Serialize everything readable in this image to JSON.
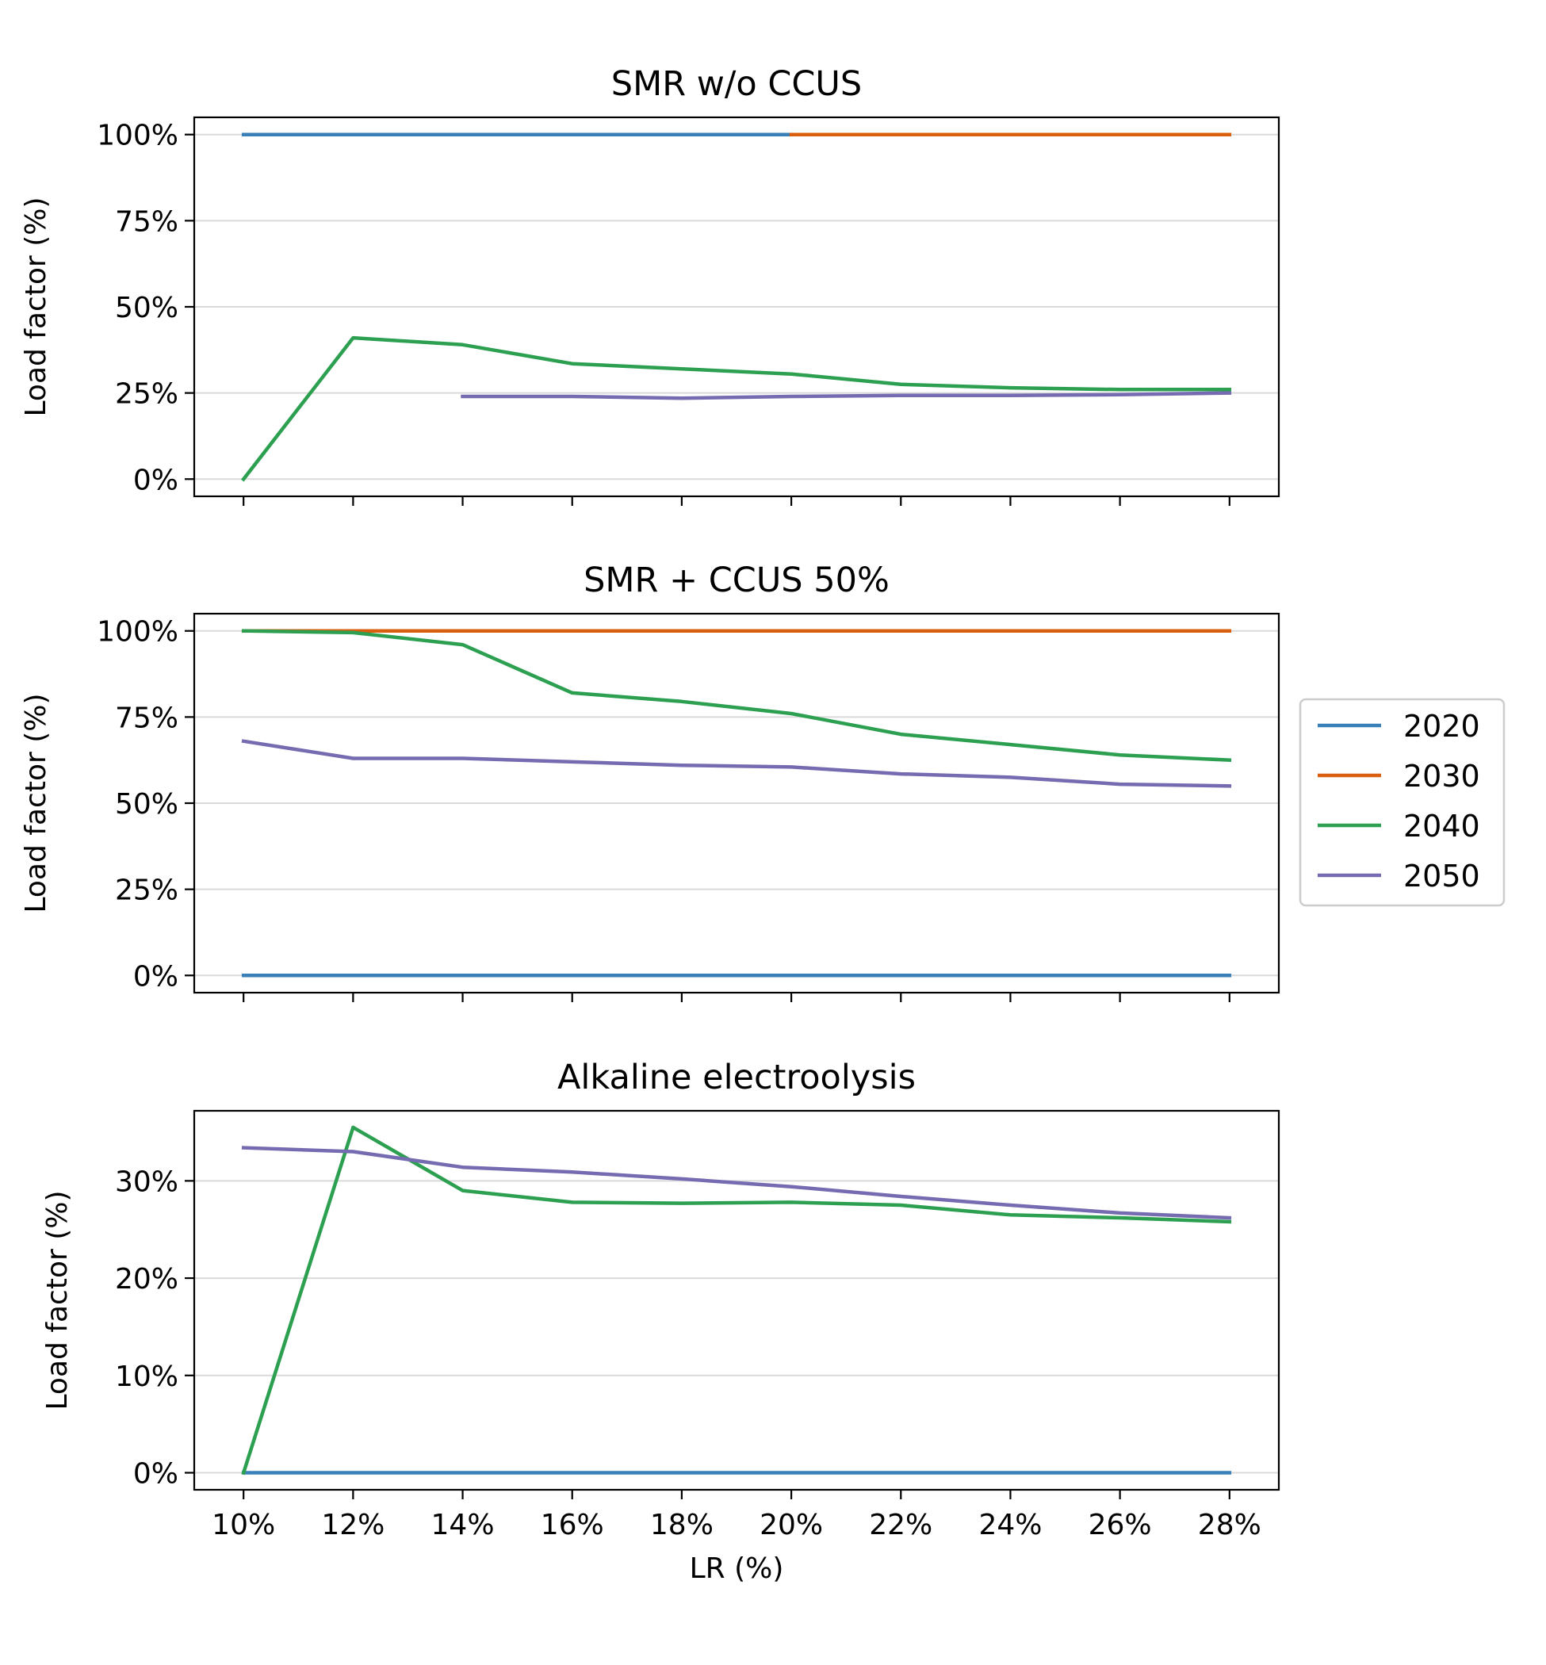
{
  "chart_data": [
    {
      "type": "line",
      "title": "SMR w/o CCUS",
      "xlabel": "",
      "ylabel": "Load factor (%)",
      "x": [
        10,
        12,
        14,
        16,
        18,
        20,
        22,
        24,
        26,
        28
      ],
      "xlim": [
        9.1,
        28.9
      ],
      "ylim": [
        -5,
        105
      ],
      "yticks": [
        0,
        25,
        50,
        75,
        100
      ],
      "ytick_labels": [
        "0%",
        "25%",
        "50%",
        "75%",
        "100%"
      ],
      "xtick_labels_visible": false,
      "grid": "horizontal",
      "series": [
        {
          "name": "2020",
          "color": "#3a80b8",
          "values": [
            100,
            100,
            100,
            100,
            100,
            100,
            null,
            null,
            null,
            null
          ]
        },
        {
          "name": "2030",
          "color": "#d95f0e",
          "values": [
            null,
            null,
            null,
            null,
            null,
            100,
            100,
            100,
            100,
            100
          ]
        },
        {
          "name": "2040",
          "color": "#2ca050",
          "values": [
            0,
            41,
            39,
            33.5,
            32,
            30.5,
            27.5,
            26.5,
            26,
            26
          ]
        },
        {
          "name": "2050",
          "color": "#756bb1",
          "values": [
            null,
            null,
            24,
            24,
            23.5,
            24,
            24.3,
            24.3,
            24.5,
            25
          ]
        }
      ]
    },
    {
      "type": "line",
      "title": "SMR + CCUS 50%",
      "xlabel": "",
      "ylabel": "Load factor (%)",
      "x": [
        10,
        12,
        14,
        16,
        18,
        20,
        22,
        24,
        26,
        28
      ],
      "xlim": [
        9.1,
        28.9
      ],
      "ylim": [
        -5,
        105
      ],
      "yticks": [
        0,
        25,
        50,
        75,
        100
      ],
      "ytick_labels": [
        "0%",
        "25%",
        "50%",
        "75%",
        "100%"
      ],
      "xtick_labels_visible": false,
      "grid": "horizontal",
      "series": [
        {
          "name": "2020",
          "color": "#3a80b8",
          "values": [
            0,
            0,
            0,
            0,
            0,
            0,
            0,
            0,
            0,
            0
          ]
        },
        {
          "name": "2030",
          "color": "#d95f0e",
          "values": [
            100,
            100,
            100,
            100,
            100,
            100,
            100,
            100,
            100,
            100
          ]
        },
        {
          "name": "2040",
          "color": "#2ca050",
          "values": [
            100,
            99.5,
            96,
            82,
            79.5,
            76,
            70,
            67,
            64,
            62.5
          ]
        },
        {
          "name": "2050",
          "color": "#756bb1",
          "values": [
            68,
            63,
            63,
            62,
            61,
            60.5,
            58.5,
            57.5,
            55.5,
            55
          ]
        }
      ]
    },
    {
      "type": "line",
      "title": "Alkaline electroolysis",
      "xlabel": "LR (%)",
      "ylabel": "Load factor (%)",
      "x": [
        10,
        12,
        14,
        16,
        18,
        20,
        22,
        24,
        26,
        28
      ],
      "xlim": [
        9.1,
        28.9
      ],
      "ylim": [
        -1.75,
        37.2
      ],
      "yticks": [
        0,
        10,
        20,
        30
      ],
      "ytick_labels": [
        "0%",
        "10%",
        "20%",
        "30%"
      ],
      "xtick_labels_visible": true,
      "xtick_labels": [
        "10%",
        "12%",
        "14%",
        "16%",
        "18%",
        "20%",
        "22%",
        "24%",
        "26%",
        "28%"
      ],
      "grid": "horizontal",
      "series": [
        {
          "name": "2020",
          "color": "#3a80b8",
          "values": [
            0,
            0,
            0,
            0,
            0,
            0,
            0,
            0,
            0,
            0
          ]
        },
        {
          "name": "2040",
          "color": "#2ca050",
          "values": [
            0,
            35.5,
            29,
            27.8,
            27.7,
            27.8,
            27.5,
            26.5,
            26.2,
            25.8
          ]
        },
        {
          "name": "2050",
          "color": "#756bb1",
          "values": [
            33.4,
            33,
            31.4,
            30.9,
            30.2,
            29.4,
            28.4,
            27.5,
            26.7,
            26.2
          ]
        }
      ]
    }
  ],
  "legend": {
    "placement": "right of middle panel",
    "entries": [
      {
        "label": "2020",
        "color": "#3a80b8"
      },
      {
        "label": "2030",
        "color": "#d95f0e"
      },
      {
        "label": "2040",
        "color": "#2ca050"
      },
      {
        "label": "2050",
        "color": "#756bb1"
      }
    ]
  }
}
